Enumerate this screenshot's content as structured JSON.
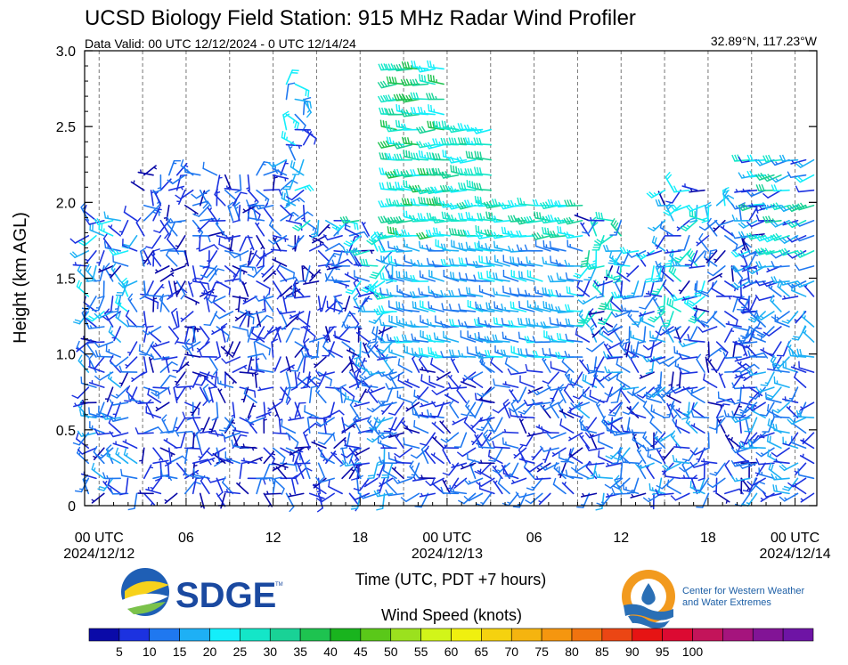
{
  "header": {
    "title": "UCSD Biology Field Station: 915 MHz Radar Wind Profiler",
    "valid": "Data Valid: 00 UTC 12/12/2024 - 0 UTC 12/14/24",
    "location": "32.89°N, 117.23°W"
  },
  "logos": {
    "sdge": "SDGE",
    "sdge_tm": "TM",
    "cw3e_line1": "Center for Western Weather",
    "cw3e_line2": "and Water Extremes"
  },
  "colors": {
    "speed_palette": [
      "#0a0aa8",
      "#1c32e0",
      "#1f78f0",
      "#1eb0f5",
      "#14eefa",
      "#14e6c8",
      "#19d296",
      "#1ec350",
      "#19b41e",
      "#5ac819",
      "#9be11e",
      "#d2f519",
      "#f0f00f",
      "#f5d20f",
      "#f5b40f",
      "#f5960f",
      "#f0730f",
      "#eb4614",
      "#e61414",
      "#dc0a32",
      "#c3145a",
      "#a5147d",
      "#821496",
      "#6e14a5"
    ]
  },
  "chart_data": {
    "type": "wind_barb_time_height",
    "title": "UCSD Biology Field Station: 915 MHz Radar Wind Profiler",
    "subtitle": "Data Valid: 00 UTC 12/12/2024 - 0 UTC 12/14/24",
    "xlabel": "Time (UTC, PDT +7 hours)",
    "ylabel": "Height (km AGL)",
    "ylim": [
      0,
      3.0
    ],
    "y_ticks": [
      "0",
      "0.5",
      "1.0",
      "1.5",
      "2.0",
      "2.5",
      "3.0"
    ],
    "x_range_hours": [
      -1,
      49.5
    ],
    "x_ticks": [
      {
        "hour": 0,
        "label1": "00 UTC",
        "label2": "2024/12/12"
      },
      {
        "hour": 6,
        "label1": "06",
        "label2": ""
      },
      {
        "hour": 12,
        "label1": "12",
        "label2": ""
      },
      {
        "hour": 18,
        "label1": "18",
        "label2": ""
      },
      {
        "hour": 24,
        "label1": "00 UTC",
        "label2": "2024/12/13"
      },
      {
        "hour": 30,
        "label1": "06",
        "label2": ""
      },
      {
        "hour": 36,
        "label1": "12",
        "label2": ""
      },
      {
        "hour": 42,
        "label1": "18",
        "label2": ""
      },
      {
        "hour": 48,
        "label1": "00 UTC",
        "label2": "2024/12/14"
      }
    ],
    "dashed_vertical_lines_hours": [
      0,
      3,
      6,
      9,
      12,
      15,
      18,
      21,
      24,
      27,
      30,
      33,
      36,
      39,
      42,
      45,
      48
    ],
    "colorbar": {
      "label": "Wind Speed (knots)",
      "tick_labels": [
        "5",
        "10",
        "15",
        "20",
        "25",
        "30",
        "35",
        "40",
        "45",
        "50",
        "55",
        "60",
        "65",
        "70",
        "75",
        "80",
        "85",
        "90",
        "95",
        "100"
      ]
    },
    "segments": [
      {
        "t0": -0.8,
        "t1": 2.9,
        "top": 1.9,
        "regime": "mixed",
        "max_kt": 25
      },
      {
        "t0": 3.1,
        "t1": 12.9,
        "top": 2.25,
        "regime": "light",
        "max_kt": 15
      },
      {
        "t0": 12.9,
        "t1": 14.5,
        "top": 2.85,
        "regime": "light",
        "max_kt": 25
      },
      {
        "t0": 14.5,
        "t1": 18.0,
        "top": 1.9,
        "regime": "light",
        "max_kt": 35
      },
      {
        "t0": 18.0,
        "t1": 20.4,
        "top": 1.8,
        "regime": "rising",
        "max_kt": 30
      },
      {
        "t0": 20.4,
        "t1": 24.2,
        "top": 2.9,
        "regime": "strong",
        "max_kt": 40
      },
      {
        "t0": 24.2,
        "t1": 27.2,
        "top": 2.55,
        "regime": "strong",
        "max_kt": 35
      },
      {
        "t0": 27.2,
        "t1": 33.7,
        "top": 2.05,
        "regime": "strong",
        "max_kt": 35
      },
      {
        "t0": 33.7,
        "t1": 36.0,
        "top": 1.95,
        "regime": "mixed",
        "max_kt": 35
      },
      {
        "t0": 36.0,
        "t1": 39.0,
        "top": 1.75,
        "regime": "mixed",
        "max_kt": 25
      },
      {
        "t0": 39.0,
        "t1": 42.0,
        "top": 2.15,
        "regime": "mixed",
        "max_kt": 30
      },
      {
        "t0": 42.0,
        "t1": 44.8,
        "top": 2.0,
        "regime": "light",
        "max_kt": 25
      },
      {
        "t0": 44.8,
        "t1": 49.3,
        "top": 2.35,
        "regime": "veering",
        "max_kt": 35
      }
    ]
  }
}
